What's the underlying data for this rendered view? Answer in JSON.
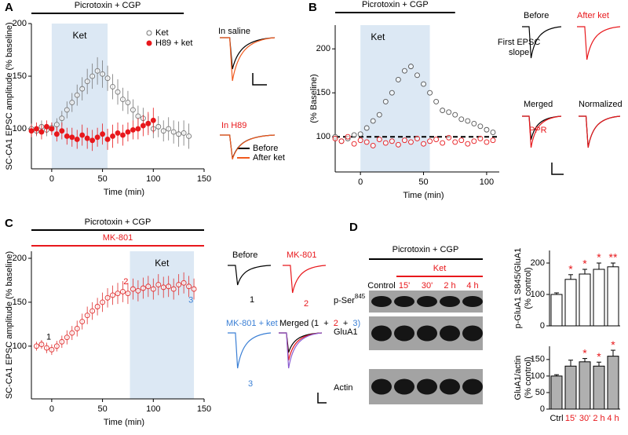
{
  "figure": {
    "panel_labels": [
      "A",
      "B",
      "C",
      "D"
    ],
    "a_traces": {
      "top": "In saline",
      "bottom": "In H89",
      "legend": [
        "Before",
        "After ket"
      ]
    },
    "b_traces": [
      "Before",
      "After ket",
      "Merged",
      "Normalized"
    ],
    "c_traces": {
      "before": "Before",
      "before_n": "1",
      "mk801": "MK-801",
      "mk801_n": "2",
      "mk801_ket": "MK-801 + ket",
      "mk801_ket_n": "3",
      "merged": [
        "Merged (1",
        "+",
        "2",
        "+",
        "3)"
      ]
    },
    "blot": {
      "treatment": "Picrotoxin + CGP",
      "drug": "Ket",
      "lanes": [
        "Control",
        "15'",
        "30'",
        "2 h",
        "4 h"
      ],
      "rows": [
        {
          "name": "p-Ser",
          "sup": "845"
        },
        {
          "name": "GluA1"
        },
        {
          "name": "Actin"
        }
      ]
    }
  },
  "chart_data": [
    {
      "type": "scatter",
      "xlabel": "Time (min)",
      "ylabel": [
        "SC-CA1 EPSC amplitude (% baseline)"
      ],
      "xlim": [
        -20,
        150
      ],
      "xticks": [
        0,
        50,
        100,
        150
      ],
      "ylim": [
        62,
        200
      ],
      "yticks": [
        100,
        150,
        200
      ],
      "bars": [
        {
          "label": "Picrotoxin + CGP",
          "x": [
            -20,
            130
          ],
          "color": "#000000"
        }
      ],
      "shade": {
        "label": "Ket",
        "x": [
          0,
          55
        ]
      },
      "legend": "upper right",
      "series": [
        {
          "name": "Ket",
          "color": "#777777",
          "filled": false,
          "x": [
            -20,
            -15,
            -10,
            -5,
            0,
            5,
            10,
            15,
            20,
            25,
            30,
            35,
            40,
            45,
            50,
            55,
            60,
            65,
            70,
            75,
            80,
            85,
            90,
            95,
            100,
            105,
            110,
            115,
            120,
            125,
            130,
            135
          ],
          "values": [
            100,
            98,
            102,
            99,
            101,
            104,
            110,
            118,
            125,
            132,
            138,
            145,
            150,
            155,
            152,
            148,
            140,
            135,
            128,
            125,
            118,
            112,
            110,
            105,
            100,
            102,
            98,
            100,
            97,
            95,
            96,
            93
          ],
          "errors": [
            5,
            5,
            6,
            6,
            5,
            6,
            7,
            8,
            9,
            10,
            11,
            12,
            12,
            13,
            13,
            12,
            12,
            12,
            11,
            11,
            10,
            10,
            10,
            9,
            9,
            10,
            10,
            11,
            11,
            12,
            12,
            12
          ]
        },
        {
          "name": "H89 + ket",
          "color": "#e8181c",
          "filled": true,
          "x": [
            -20,
            -15,
            -10,
            -5,
            0,
            5,
            10,
            15,
            20,
            25,
            30,
            35,
            40,
            45,
            50,
            55,
            60,
            65,
            70,
            75,
            80,
            85,
            90,
            95,
            100
          ],
          "values": [
            98,
            100,
            97,
            102,
            100,
            95,
            98,
            93,
            92,
            90,
            94,
            91,
            89,
            92,
            95,
            90,
            93,
            96,
            94,
            97,
            99,
            100,
            103,
            105,
            108
          ],
          "errors": [
            6,
            6,
            7,
            6,
            6,
            7,
            8,
            8,
            9,
            9,
            10,
            10,
            10,
            9,
            10,
            10,
            11,
            10,
            10,
            9,
            9,
            10,
            10,
            11,
            12
          ]
        }
      ]
    },
    {
      "type": "scatter",
      "xlabel": "Time (min)",
      "ylabel": [
        "(% Baseline)"
      ],
      "xlim": [
        -20,
        110
      ],
      "xticks": [
        0,
        50,
        100
      ],
      "ylim": [
        60,
        227
      ],
      "yticks": [
        100,
        150,
        200
      ],
      "bars": [
        {
          "label": "Picrotoxin + CGP",
          "x": [
            -20,
            75
          ],
          "color": "#000000"
        }
      ],
      "shade": {
        "label": "Ket",
        "x": [
          0,
          55
        ]
      },
      "reference_line": 100,
      "series": [
        {
          "name": "First EPSC slope",
          "color": "#555555",
          "filled": false,
          "x": [
            -20,
            -15,
            -10,
            -5,
            0,
            5,
            10,
            15,
            20,
            25,
            30,
            35,
            40,
            45,
            50,
            55,
            60,
            65,
            70,
            75,
            80,
            85,
            90,
            95,
            100,
            105
          ],
          "values": [
            100,
            95,
            98,
            102,
            103,
            110,
            118,
            125,
            140,
            150,
            165,
            175,
            180,
            170,
            160,
            150,
            140,
            130,
            128,
            125,
            120,
            118,
            115,
            112,
            108,
            105
          ]
        },
        {
          "name": "PPR",
          "color": "#e8181c",
          "filled": false,
          "x": [
            -20,
            -15,
            -10,
            -5,
            0,
            5,
            10,
            15,
            20,
            25,
            30,
            35,
            40,
            45,
            50,
            55,
            60,
            65,
            70,
            75,
            80,
            85,
            90,
            95,
            100,
            105
          ],
          "values": [
            98,
            95,
            100,
            92,
            96,
            94,
            90,
            97,
            93,
            95,
            91,
            96,
            94,
            98,
            92,
            95,
            97,
            93,
            99,
            94,
            96,
            92,
            95,
            98,
            94,
            96
          ]
        }
      ]
    },
    {
      "type": "scatter",
      "xlabel": "Time (min)",
      "ylabel": [
        "SC-CA1 EPSC amplitude (% baseline)"
      ],
      "xlim": [
        -20,
        150
      ],
      "xticks": [
        0,
        50,
        100,
        150
      ],
      "ylim": [
        40,
        208
      ],
      "yticks": [
        100,
        150,
        200
      ],
      "bars": [
        {
          "label": "Picrotoxin + CGP",
          "x": [
            -20,
            150
          ],
          "color": "#000000"
        },
        {
          "label": "MK-801",
          "x": [
            -20,
            150
          ],
          "color": "#e8181c"
        }
      ],
      "shade": {
        "label": "Ket",
        "x": [
          77,
          140
        ]
      },
      "annotations": [
        {
          "text": "1",
          "color": "#000000"
        },
        {
          "text": "2",
          "color": "#e8181c"
        },
        {
          "text": "3",
          "color": "#3a7fd5"
        }
      ],
      "series": [
        {
          "name": "MK-801 + ket",
          "color": "#e03030",
          "filled": false,
          "x": [
            -15,
            -10,
            -5,
            0,
            5,
            10,
            15,
            20,
            25,
            30,
            35,
            40,
            45,
            50,
            55,
            60,
            65,
            70,
            75,
            80,
            85,
            90,
            95,
            100,
            105,
            110,
            115,
            120,
            125,
            130,
            135,
            140
          ],
          "values": [
            100,
            102,
            98,
            96,
            100,
            105,
            110,
            115,
            120,
            128,
            135,
            140,
            145,
            150,
            155,
            158,
            160,
            162,
            160,
            165,
            163,
            166,
            168,
            165,
            170,
            167,
            168,
            165,
            170,
            172,
            168,
            165
          ],
          "errors": [
            5,
            5,
            6,
            6,
            6,
            7,
            8,
            8,
            9,
            9,
            10,
            10,
            10,
            11,
            11,
            11,
            12,
            12,
            12,
            12,
            12,
            12,
            12,
            12,
            12,
            12,
            12,
            12,
            12,
            12,
            12,
            12
          ]
        }
      ]
    },
    {
      "type": "bar",
      "ylabel": [
        "p-GluA1 S845/GluA1",
        "(% control)"
      ],
      "categories": [
        null,
        null,
        null,
        null,
        null
      ],
      "values": [
        100,
        148,
        165,
        180,
        188
      ],
      "errors": [
        5,
        15,
        15,
        20,
        12
      ],
      "significance": [
        null,
        "*",
        "*",
        "*",
        "**"
      ],
      "color": "#ffffff",
      "ylim": [
        0,
        240
      ],
      "yticks": [
        0,
        100,
        200
      ]
    },
    {
      "type": "bar",
      "ylabel": [
        "GluA1/actin",
        "(% control)"
      ],
      "categories": [
        "Ctrl",
        "15'",
        "30'",
        "2 h",
        "4 h"
      ],
      "category_colors": [
        "#000000",
        "#e8181c",
        "#e8181c",
        "#e8181c",
        "#e8181c"
      ],
      "values": [
        100,
        130,
        143,
        130,
        160
      ],
      "errors": [
        4,
        18,
        10,
        12,
        18
      ],
      "significance": [
        null,
        null,
        "*",
        "*",
        "*"
      ],
      "color": "#b0b0b0",
      "ylim": [
        0,
        190
      ],
      "yticks": [
        0,
        50,
        100,
        150
      ]
    }
  ]
}
